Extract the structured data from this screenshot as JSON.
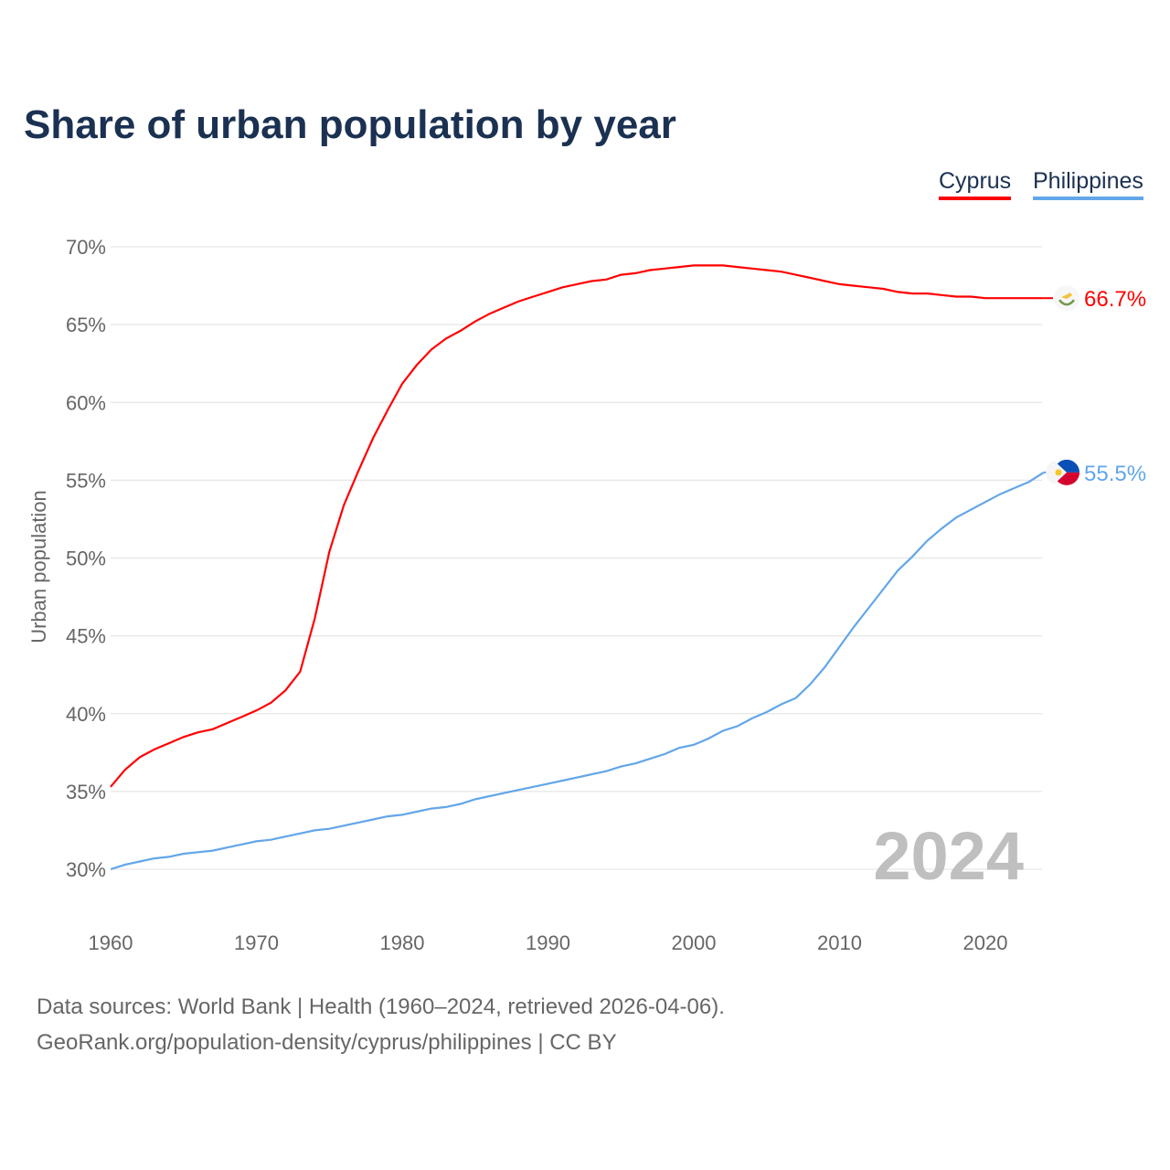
{
  "chart_data": {
    "type": "line",
    "title": "Share of urban population by year",
    "xlabel": "",
    "ylabel": "Urban population",
    "xlim": [
      1960,
      2024
    ],
    "ylim": [
      30,
      70
    ],
    "yticks": [
      "30%",
      "35%",
      "40%",
      "45%",
      "50%",
      "55%",
      "60%",
      "65%",
      "70%"
    ],
    "ytick_values": [
      30,
      35,
      40,
      45,
      50,
      55,
      60,
      65,
      70
    ],
    "xticks": [
      1960,
      1970,
      1980,
      1990,
      2000,
      2010,
      2020
    ],
    "grid": true,
    "legend_placement": "top-right",
    "year_label": "2024",
    "x": [
      1960,
      1961,
      1962,
      1963,
      1964,
      1965,
      1966,
      1967,
      1968,
      1969,
      1970,
      1971,
      1972,
      1973,
      1974,
      1975,
      1976,
      1977,
      1978,
      1979,
      1980,
      1981,
      1982,
      1983,
      1984,
      1985,
      1986,
      1987,
      1988,
      1989,
      1990,
      1991,
      1992,
      1993,
      1994,
      1995,
      1996,
      1997,
      1998,
      1999,
      2000,
      2001,
      2002,
      2003,
      2004,
      2005,
      2006,
      2007,
      2008,
      2009,
      2010,
      2011,
      2012,
      2013,
      2014,
      2015,
      2016,
      2017,
      2018,
      2019,
      2020,
      2021,
      2022,
      2023,
      2024
    ],
    "series": [
      {
        "name": "Cyprus",
        "color": "#ff0000",
        "end_label": "66.7%",
        "values": [
          35.3,
          36.4,
          37.2,
          37.7,
          38.1,
          38.5,
          38.8,
          39.0,
          39.4,
          39.8,
          40.2,
          40.7,
          41.5,
          42.7,
          46.1,
          50.4,
          53.4,
          55.6,
          57.7,
          59.5,
          61.2,
          62.4,
          63.4,
          64.1,
          64.6,
          65.2,
          65.7,
          66.1,
          66.5,
          66.8,
          67.1,
          67.4,
          67.6,
          67.8,
          67.9,
          68.2,
          68.3,
          68.5,
          68.6,
          68.7,
          68.8,
          68.8,
          68.8,
          68.7,
          68.6,
          68.5,
          68.4,
          68.2,
          68.0,
          67.8,
          67.6,
          67.5,
          67.4,
          67.3,
          67.1,
          67.0,
          67.0,
          66.9,
          66.8,
          66.8,
          66.7,
          66.7,
          66.7,
          66.7,
          66.7
        ]
      },
      {
        "name": "Philippines",
        "color": "#62a6e8",
        "end_label": "55.5%",
        "values": [
          30.0,
          30.3,
          30.5,
          30.7,
          30.8,
          31.0,
          31.1,
          31.2,
          31.4,
          31.6,
          31.8,
          31.9,
          32.1,
          32.3,
          32.5,
          32.6,
          32.8,
          33.0,
          33.2,
          33.4,
          33.5,
          33.7,
          33.9,
          34.0,
          34.2,
          34.5,
          34.7,
          34.9,
          35.1,
          35.3,
          35.5,
          35.7,
          35.9,
          36.1,
          36.3,
          36.6,
          36.8,
          37.1,
          37.4,
          37.8,
          38.0,
          38.4,
          38.9,
          39.2,
          39.7,
          40.1,
          40.6,
          41.0,
          41.9,
          43.0,
          44.3,
          45.6,
          46.8,
          48.0,
          49.2,
          50.1,
          51.1,
          51.9,
          52.6,
          53.1,
          53.6,
          54.1,
          54.5,
          54.9,
          55.5
        ]
      }
    ]
  },
  "legend": {
    "cyprus": "Cyprus",
    "philippines": "Philippines"
  },
  "footer": {
    "sources": "Data sources: World Bank | Health (1960–2024, retrieved 2026-04-06).",
    "link": "GeoRank.org/population-density/cyprus/philippines | CC BY"
  }
}
